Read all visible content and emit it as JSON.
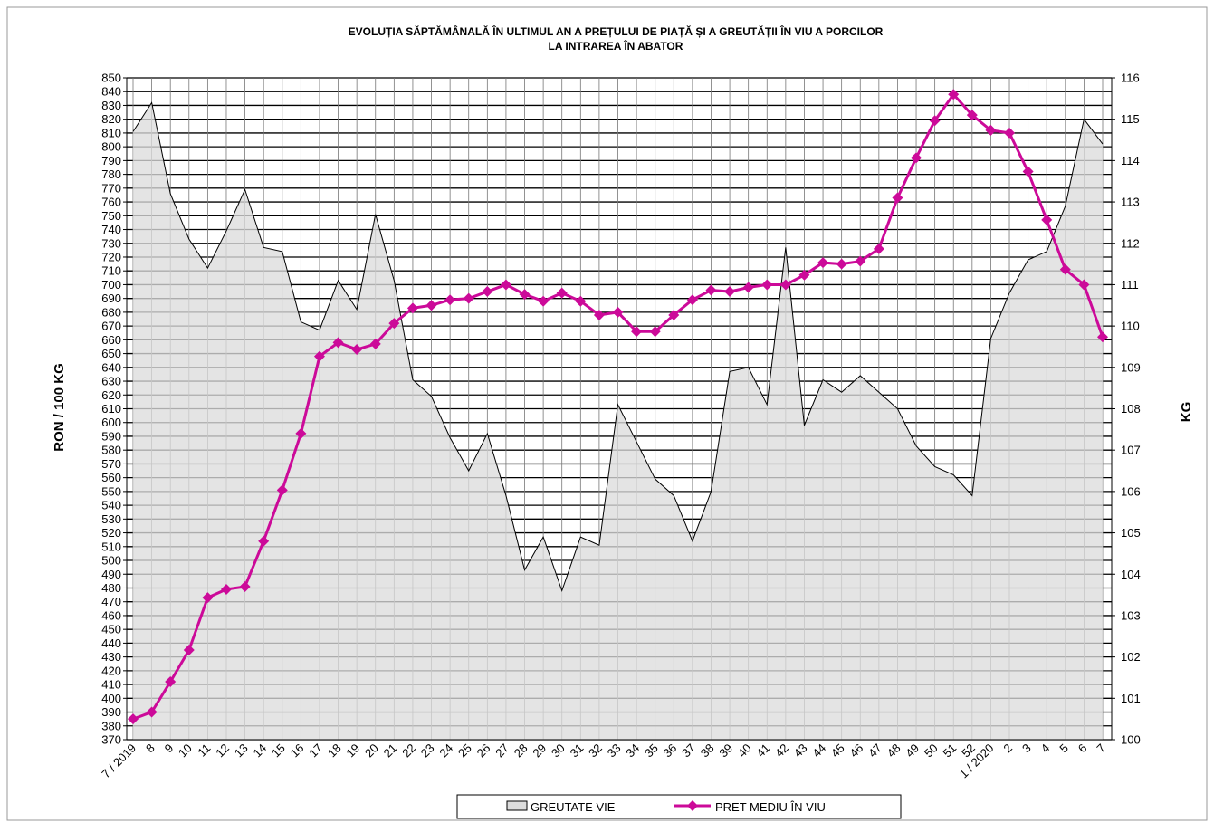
{
  "chart_data": {
    "type": "combo",
    "title": "EVOLUȚIA SĂPTĂMÂNALĂ ÎN ULTIMUL AN A PREȚULUI DE PIAȚĂ ȘI A GREUTĂȚII ÎN VIU A PORCILOR",
    "subtitle": "LA INTRAREA ÎN ABATOR",
    "y_label": "RON / 100 KG",
    "y2_label": "KG",
    "categories": [
      "7 / 2019",
      "8",
      "9",
      "10",
      "11",
      "12",
      "13",
      "14",
      "15",
      "16",
      "17",
      "18",
      "19",
      "20",
      "21",
      "22",
      "23",
      "24",
      "25",
      "26",
      "27",
      "28",
      "29",
      "30",
      "31",
      "32",
      "33",
      "34",
      "35",
      "36",
      "37",
      "38",
      "39",
      "40",
      "41",
      "42",
      "43",
      "44",
      "45",
      "46",
      "47",
      "48",
      "49",
      "50",
      "51",
      "52",
      "1 / 2020",
      "2",
      "3",
      "4",
      "5",
      "6",
      "7"
    ],
    "series": [
      {
        "name": "GREUTATE VIE",
        "type": "area",
        "axis": "y2",
        "color": "#dcdcdc",
        "values": [
          114.7,
          115.4,
          113.2,
          112.1,
          111.4,
          112.3,
          113.3,
          111.9,
          111.8,
          110.1,
          109.9,
          111.1,
          110.4,
          112.7,
          111.1,
          108.7,
          108.3,
          107.3,
          106.5,
          107.4,
          105.9,
          104.1,
          104.9,
          103.6,
          104.9,
          104.7,
          108.1,
          107.2,
          106.3,
          105.9,
          104.8,
          106.0,
          108.9,
          109.0,
          108.1,
          111.9,
          107.6,
          108.7,
          108.4,
          108.8,
          108.4,
          108.0,
          107.1,
          106.6,
          106.4,
          105.9,
          109.7,
          110.8,
          111.6,
          111.8,
          112.9,
          115.0,
          114.4
        ]
      },
      {
        "name": "PRET MEDIU ÎN VIU",
        "type": "line",
        "axis": "y",
        "color": "#cc0a99",
        "values": [
          385,
          390,
          412,
          435,
          473,
          479,
          481,
          514,
          551,
          592,
          648,
          658,
          653,
          657,
          672,
          683,
          685,
          689,
          690,
          695,
          700,
          693,
          688,
          694,
          688,
          678,
          680,
          666,
          666,
          678,
          689,
          696,
          695,
          698,
          700,
          700,
          707,
          716,
          715,
          717,
          726,
          763,
          792,
          819,
          838,
          823,
          812,
          810,
          782,
          747,
          711,
          700,
          662
        ]
      }
    ],
    "ylim": [
      370,
      850
    ],
    "yticks": [
      370,
      380,
      390,
      400,
      410,
      420,
      430,
      440,
      450,
      460,
      470,
      480,
      490,
      500,
      510,
      520,
      530,
      540,
      550,
      560,
      570,
      580,
      590,
      600,
      610,
      620,
      630,
      640,
      650,
      660,
      670,
      680,
      690,
      700,
      710,
      720,
      730,
      740,
      750,
      760,
      770,
      780,
      790,
      800,
      810,
      820,
      830,
      840,
      850
    ],
    "y2lim": [
      100,
      116
    ],
    "y2ticks": [
      100,
      101,
      102,
      103,
      104,
      105,
      106,
      107,
      108,
      109,
      110,
      111,
      112,
      113,
      114,
      115,
      116
    ],
    "grid": true
  }
}
